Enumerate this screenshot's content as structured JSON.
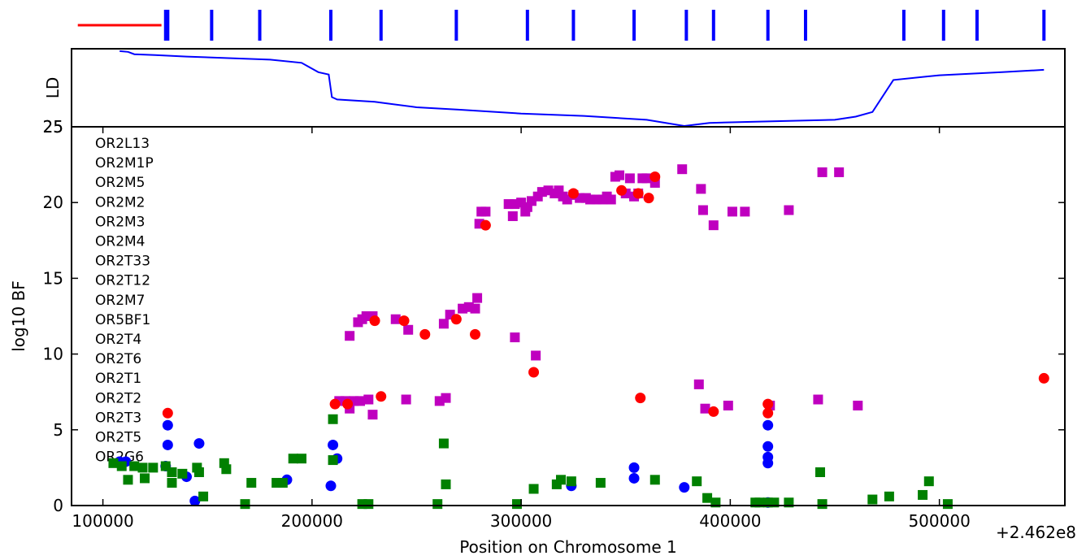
{
  "chart_data": {
    "type": "scatter",
    "xlabel": "Position on Chromosome 1",
    "ylabel": "log10 BF",
    "ld_ylabel": "LD",
    "ld_ytick": "25",
    "x_offset_label": "+2.462e8",
    "xlim": [
      85000,
      560000
    ],
    "ylim": [
      0,
      25
    ],
    "xticks": [
      {
        "v": 100000,
        "label": "100000"
      },
      {
        "v": 200000,
        "label": "200000"
      },
      {
        "v": 300000,
        "label": "300000"
      },
      {
        "v": 400000,
        "label": "400000"
      },
      {
        "v": 500000,
        "label": "500000"
      }
    ],
    "yticks": [
      {
        "v": 0,
        "label": "0"
      },
      {
        "v": 5,
        "label": "5"
      },
      {
        "v": 10,
        "label": "10"
      },
      {
        "v": 15,
        "label": "15"
      },
      {
        "v": 20,
        "label": "20"
      },
      {
        "v": 25,
        "label": "25"
      }
    ],
    "genes": [
      "OR2L13",
      "OR2M1P",
      "OR2M5",
      "OR2M2",
      "OR2M3",
      "OR2M4",
      "OR2T33",
      "OR2T12",
      "OR2M7",
      "OR5BF1",
      "OR2T4",
      "OR2T6",
      "OR2T1",
      "OR2T2",
      "OR2T3",
      "OR2T5",
      "OR2G6"
    ],
    "colors": {
      "magenta": "#bf00bf",
      "red": "#ff0000",
      "blue": "#0000ff",
      "green": "#008000",
      "ld": "#0000ff"
    },
    "ld_line": [
      [
        108000,
        0.97
      ],
      [
        112000,
        0.96
      ],
      [
        115000,
        0.93
      ],
      [
        125000,
        0.92
      ],
      [
        140000,
        0.9
      ],
      [
        160000,
        0.88
      ],
      [
        180000,
        0.86
      ],
      [
        195000,
        0.82
      ],
      [
        203000,
        0.7
      ],
      [
        208000,
        0.67
      ],
      [
        209500,
        0.38
      ],
      [
        212000,
        0.35
      ],
      [
        230000,
        0.32
      ],
      [
        250000,
        0.25
      ],
      [
        270000,
        0.22
      ],
      [
        300000,
        0.17
      ],
      [
        330000,
        0.14
      ],
      [
        360000,
        0.09
      ],
      [
        378000,
        0.01
      ],
      [
        390000,
        0.05
      ],
      [
        420000,
        0.07
      ],
      [
        450000,
        0.09
      ],
      [
        460000,
        0.13
      ],
      [
        468000,
        0.19
      ],
      [
        478000,
        0.6
      ],
      [
        500000,
        0.66
      ],
      [
        530000,
        0.7
      ],
      [
        550000,
        0.73
      ]
    ],
    "snp_markers": [
      130000,
      131000,
      152000,
      175000,
      209000,
      233000,
      269000,
      303000,
      325000,
      354000,
      379000,
      392000,
      418000,
      436000,
      483000,
      502000,
      518000,
      550000
    ],
    "red_line": [
      88000,
      128000
    ],
    "series": [
      {
        "name": "",
        "color": "magenta",
        "marker": "square",
        "points": [
          [
            280000,
            18.6
          ],
          [
            281000,
            19.4
          ],
          [
            283000,
            19.4
          ],
          [
            294000,
            19.9
          ],
          [
            296000,
            19.1
          ],
          [
            297000,
            19.9
          ],
          [
            300000,
            20.0
          ],
          [
            302000,
            19.4
          ],
          [
            303000,
            19.7
          ],
          [
            305000,
            20.1
          ],
          [
            308000,
            20.4
          ],
          [
            310000,
            20.7
          ],
          [
            313000,
            20.8
          ],
          [
            316000,
            20.6
          ],
          [
            318000,
            20.8
          ],
          [
            320000,
            20.4
          ],
          [
            322000,
            20.2
          ],
          [
            325000,
            20.5
          ],
          [
            328000,
            20.3
          ],
          [
            331000,
            20.3
          ],
          [
            333000,
            20.2
          ],
          [
            336000,
            20.2
          ],
          [
            339000,
            20.2
          ],
          [
            341000,
            20.4
          ],
          [
            343000,
            20.2
          ],
          [
            345000,
            21.7
          ],
          [
            347000,
            21.8
          ],
          [
            350000,
            20.6
          ],
          [
            352000,
            21.6
          ],
          [
            354000,
            20.4
          ],
          [
            356000,
            20.6
          ],
          [
            358000,
            21.6
          ],
          [
            360000,
            21.6
          ],
          [
            364000,
            21.3
          ],
          [
            377000,
            22.2
          ],
          [
            386000,
            20.9
          ],
          [
            387000,
            19.5
          ],
          [
            392000,
            18.5
          ],
          [
            401000,
            19.4
          ],
          [
            407000,
            19.4
          ],
          [
            428000,
            19.5
          ],
          [
            444000,
            22.0
          ],
          [
            452000,
            22.0
          ],
          [
            218000,
            11.2
          ],
          [
            222000,
            12.1
          ],
          [
            224000,
            12.3
          ],
          [
            226000,
            12.5
          ],
          [
            229000,
            12.5
          ],
          [
            240000,
            12.3
          ],
          [
            246000,
            11.6
          ],
          [
            263000,
            12.0
          ],
          [
            266000,
            12.6
          ],
          [
            272000,
            13.0
          ],
          [
            275000,
            13.1
          ],
          [
            278000,
            13.0
          ],
          [
            279000,
            13.7
          ],
          [
            297000,
            11.1
          ],
          [
            307000,
            9.9
          ],
          [
            213000,
            6.9
          ],
          [
            216000,
            6.9
          ],
          [
            218000,
            6.4
          ],
          [
            220000,
            6.9
          ],
          [
            223000,
            6.9
          ],
          [
            227000,
            7.0
          ],
          [
            229000,
            6.0
          ],
          [
            245000,
            7.0
          ],
          [
            261000,
            6.9
          ],
          [
            264000,
            7.1
          ],
          [
            385000,
            8.0
          ],
          [
            388000,
            6.4
          ],
          [
            399000,
            6.6
          ],
          [
            419000,
            6.6
          ],
          [
            442000,
            7.0
          ],
          [
            461000,
            6.6
          ]
        ]
      },
      {
        "name": "",
        "color": "red",
        "marker": "circle",
        "points": [
          [
            283000,
            18.5
          ],
          [
            325000,
            20.6
          ],
          [
            348000,
            20.8
          ],
          [
            356000,
            20.6
          ],
          [
            361000,
            20.3
          ],
          [
            364000,
            21.7
          ],
          [
            230000,
            12.2
          ],
          [
            244000,
            12.2
          ],
          [
            254000,
            11.3
          ],
          [
            269000,
            12.3
          ],
          [
            278000,
            11.3
          ],
          [
            306000,
            8.8
          ],
          [
            131000,
            6.1
          ],
          [
            211000,
            6.7
          ],
          [
            217000,
            6.7
          ],
          [
            233000,
            7.2
          ],
          [
            357000,
            7.1
          ],
          [
            392000,
            6.2
          ],
          [
            418000,
            6.1
          ],
          [
            418000,
            6.7
          ],
          [
            550000,
            8.4
          ]
        ]
      },
      {
        "name": "",
        "color": "blue",
        "marker": "circle",
        "points": [
          [
            131000,
            5.3
          ],
          [
            131000,
            4.0
          ],
          [
            146000,
            4.1
          ],
          [
            210000,
            4.0
          ],
          [
            212000,
            3.1
          ],
          [
            418000,
            5.3
          ],
          [
            418000,
            3.9
          ],
          [
            418000,
            3.2
          ],
          [
            418000,
            2.8
          ],
          [
            108000,
            2.9
          ],
          [
            111000,
            2.9
          ],
          [
            130000,
            2.6
          ],
          [
            140000,
            1.9
          ],
          [
            188000,
            1.7
          ],
          [
            144000,
            0.3
          ],
          [
            209000,
            1.3
          ],
          [
            324000,
            1.3
          ],
          [
            354000,
            2.5
          ],
          [
            354000,
            1.8
          ],
          [
            378000,
            1.2
          ],
          [
            418000,
            0.2
          ]
        ]
      },
      {
        "name": "",
        "color": "green",
        "marker": "square",
        "points": [
          [
            105000,
            2.8
          ],
          [
            109000,
            2.6
          ],
          [
            115000,
            2.6
          ],
          [
            119000,
            2.5
          ],
          [
            124000,
            2.5
          ],
          [
            130000,
            2.6
          ],
          [
            133000,
            2.2
          ],
          [
            138000,
            2.1
          ],
          [
            145000,
            2.5
          ],
          [
            146000,
            2.2
          ],
          [
            158000,
            2.8
          ],
          [
            159000,
            2.4
          ],
          [
            112000,
            1.7
          ],
          [
            120000,
            1.8
          ],
          [
            133000,
            1.5
          ],
          [
            171000,
            1.5
          ],
          [
            183000,
            1.5
          ],
          [
            186000,
            1.5
          ],
          [
            191000,
            3.1
          ],
          [
            195000,
            3.1
          ],
          [
            210000,
            5.7
          ],
          [
            210000,
            3.0
          ],
          [
            263000,
            4.1
          ],
          [
            264000,
            1.4
          ],
          [
            148000,
            0.6
          ],
          [
            168000,
            0.1
          ],
          [
            224000,
            0.1
          ],
          [
            227000,
            0.1
          ],
          [
            260000,
            0.1
          ],
          [
            298000,
            0.1
          ],
          [
            306000,
            1.1
          ],
          [
            317000,
            1.4
          ],
          [
            319000,
            1.7
          ],
          [
            324000,
            1.6
          ],
          [
            338000,
            1.5
          ],
          [
            364000,
            1.7
          ],
          [
            384000,
            1.6
          ],
          [
            389000,
            0.5
          ],
          [
            393000,
            0.2
          ],
          [
            412000,
            0.2
          ],
          [
            414000,
            0.2
          ],
          [
            418000,
            0.2
          ],
          [
            421000,
            0.2
          ],
          [
            428000,
            0.2
          ],
          [
            443000,
            2.2
          ],
          [
            444000,
            0.1
          ],
          [
            468000,
            0.4
          ],
          [
            476000,
            0.6
          ],
          [
            492000,
            0.7
          ],
          [
            495000,
            1.6
          ],
          [
            504000,
            0.1
          ]
        ]
      }
    ]
  }
}
